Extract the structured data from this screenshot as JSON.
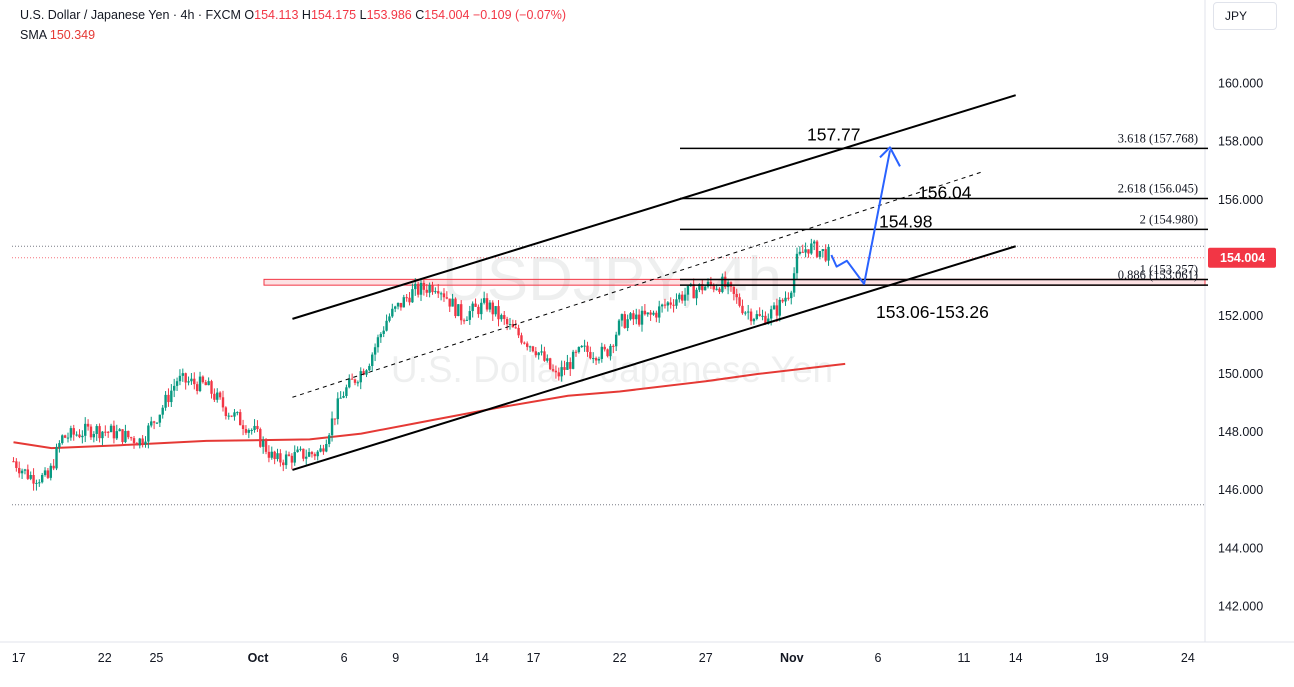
{
  "header": {
    "symbol_title": "U.S. Dollar / Japanese Yen · 4h · FXCM",
    "ohlc": [
      {
        "label": "O",
        "value": "154.113"
      },
      {
        "label": "H",
        "value": "154.175"
      },
      {
        "label": "L",
        "value": "153.986"
      },
      {
        "label": "C",
        "value": "154.004"
      }
    ],
    "change": "−0.109 (−0.07%)",
    "sma_label": "SMA",
    "sma_value": "150.349",
    "currency": "JPY"
  },
  "watermark": {
    "ticker": "USDJPY, 4h",
    "name": "U.S. Dollar / Japanese Yen"
  },
  "colors": {
    "up": "#089981",
    "down": "#f23645",
    "sma": "#e53935",
    "arrow": "#2962ff",
    "line": "#000000",
    "price_label_bg": "#f23645",
    "zone_fill": "rgba(242,54,69,0.15)",
    "zone_border": "#f23645"
  },
  "chart_data": {
    "type": "candlestick",
    "symbol": "USDJPY",
    "timeframe": "4h",
    "ylim": [
      140.5,
      161.5
    ],
    "x_range_days": [
      -14.3,
      55.7
    ],
    "y_ticks": [
      "160.000",
      "158.000",
      "156.000",
      "154.000",
      "152.000",
      "150.000",
      "148.000",
      "146.000",
      "144.000",
      "142.000"
    ],
    "y_tick_values": [
      160,
      158,
      156,
      154,
      152,
      150,
      148,
      146,
      144,
      142
    ],
    "x_ticks": [
      {
        "label": "17",
        "day": -13.9
      },
      {
        "label": "22",
        "day": -8.9
      },
      {
        "label": "25",
        "day": -5.9
      },
      {
        "label": "Oct",
        "day": 0
      },
      {
        "label": "6",
        "day": 5
      },
      {
        "label": "9",
        "day": 8
      },
      {
        "label": "14",
        "day": 13
      },
      {
        "label": "17",
        "day": 16
      },
      {
        "label": "22",
        "day": 21
      },
      {
        "label": "27",
        "day": 26
      },
      {
        "label": "Nov",
        "day": 31
      },
      {
        "label": "6",
        "day": 36
      },
      {
        "label": "11",
        "day": 41
      },
      {
        "label": "14",
        "day": 44
      },
      {
        "label": "19",
        "day": 49
      },
      {
        "label": "24",
        "day": 54
      }
    ],
    "last_price": "154.004",
    "last_price_value": 154.004,
    "price_path": [
      {
        "day": -14.2,
        "price": 147.0
      },
      {
        "day": -13.3,
        "price": 146.5
      },
      {
        "day": -12.2,
        "price": 146.4
      },
      {
        "day": -11.4,
        "price": 147.8
      },
      {
        "day": -9.6,
        "price": 148.1
      },
      {
        "day": -8.5,
        "price": 148.0
      },
      {
        "day": -6.8,
        "price": 147.7
      },
      {
        "day": -5.6,
        "price": 148.8
      },
      {
        "day": -4.7,
        "price": 149.8
      },
      {
        "day": -3.0,
        "price": 149.6
      },
      {
        "day": -1.9,
        "price": 148.8
      },
      {
        "day": -0.2,
        "price": 148.0
      },
      {
        "day": 1.0,
        "price": 147.0
      },
      {
        "day": 2.3,
        "price": 147.2
      },
      {
        "day": 3.6,
        "price": 147.3
      },
      {
        "day": 4.9,
        "price": 149.3
      },
      {
        "day": 6.4,
        "price": 150.4
      },
      {
        "day": 7.5,
        "price": 151.9
      },
      {
        "day": 8.9,
        "price": 152.8
      },
      {
        "day": 10.4,
        "price": 153.1
      },
      {
        "day": 11.8,
        "price": 152.0
      },
      {
        "day": 13.3,
        "price": 152.4
      },
      {
        "day": 14.6,
        "price": 151.6
      },
      {
        "day": 16.1,
        "price": 150.9
      },
      {
        "day": 17.3,
        "price": 149.9
      },
      {
        "day": 18.8,
        "price": 150.8
      },
      {
        "day": 20.2,
        "price": 150.7
      },
      {
        "day": 21.1,
        "price": 151.8
      },
      {
        "day": 22.8,
        "price": 152.0
      },
      {
        "day": 24.2,
        "price": 152.6
      },
      {
        "day": 25.8,
        "price": 153.0
      },
      {
        "day": 27.0,
        "price": 153.1
      },
      {
        "day": 28.3,
        "price": 152.2
      },
      {
        "day": 29.2,
        "price": 151.9
      },
      {
        "day": 30.1,
        "price": 152.2
      },
      {
        "day": 30.9,
        "price": 152.9
      },
      {
        "day": 31.3,
        "price": 153.9
      },
      {
        "day": 31.9,
        "price": 154.4
      },
      {
        "day": 33.2,
        "price": 154.1
      }
    ],
    "sma_path": [
      {
        "day": -14.2,
        "price": 147.65
      },
      {
        "day": -12.0,
        "price": 147.45
      },
      {
        "day": -8.0,
        "price": 147.55
      },
      {
        "day": -3.0,
        "price": 147.7
      },
      {
        "day": 3.0,
        "price": 147.75
      },
      {
        "day": 6.0,
        "price": 147.95
      },
      {
        "day": 10.0,
        "price": 148.4
      },
      {
        "day": 14.0,
        "price": 148.85
      },
      {
        "day": 18.0,
        "price": 149.25
      },
      {
        "day": 21.0,
        "price": 149.4
      },
      {
        "day": 26.0,
        "price": 149.75
      },
      {
        "day": 29.0,
        "price": 150.0
      },
      {
        "day": 34.1,
        "price": 150.35
      }
    ],
    "fib_levels": [
      {
        "label": "3.618 (157.768)",
        "value": 157.768
      },
      {
        "label": "2.618 (156.045)",
        "value": 156.045
      },
      {
        "label": "2 (154.980)",
        "value": 154.98
      },
      {
        "label": "1 (153.257)",
        "value": 153.257
      },
      {
        "label": "0.886 (153.061)",
        "value": 153.061
      }
    ],
    "annotations": [
      {
        "text": "157.77",
        "value": 157.77
      },
      {
        "text": "156.04",
        "value": 156.04
      },
      {
        "text": "154.98",
        "value": 154.98
      },
      {
        "text": "153.06-153.26",
        "value": 152.2
      }
    ],
    "support_zone": [
      153.06,
      153.26
    ],
    "channel_upper": [
      {
        "day": 2.0,
        "price": 151.9
      },
      {
        "day": 44.0,
        "price": 159.6
      }
    ],
    "channel_lower": [
      {
        "day": 2.0,
        "price": 146.7
      },
      {
        "day": 44.0,
        "price": 154.4
      }
    ],
    "channel_mid": [
      {
        "day": 2.0,
        "price": 149.2
      },
      {
        "day": 42.0,
        "price": 156.95
      }
    ],
    "projection": [
      {
        "day": 33.3,
        "price": 154.1
      },
      {
        "day": 33.6,
        "price": 153.7
      },
      {
        "day": 34.2,
        "price": 153.9
      },
      {
        "day": 35.2,
        "price": 153.1
      },
      {
        "day": 36.7,
        "price": 157.7
      }
    ],
    "range_lines": [
      154.4,
      145.5
    ]
  }
}
